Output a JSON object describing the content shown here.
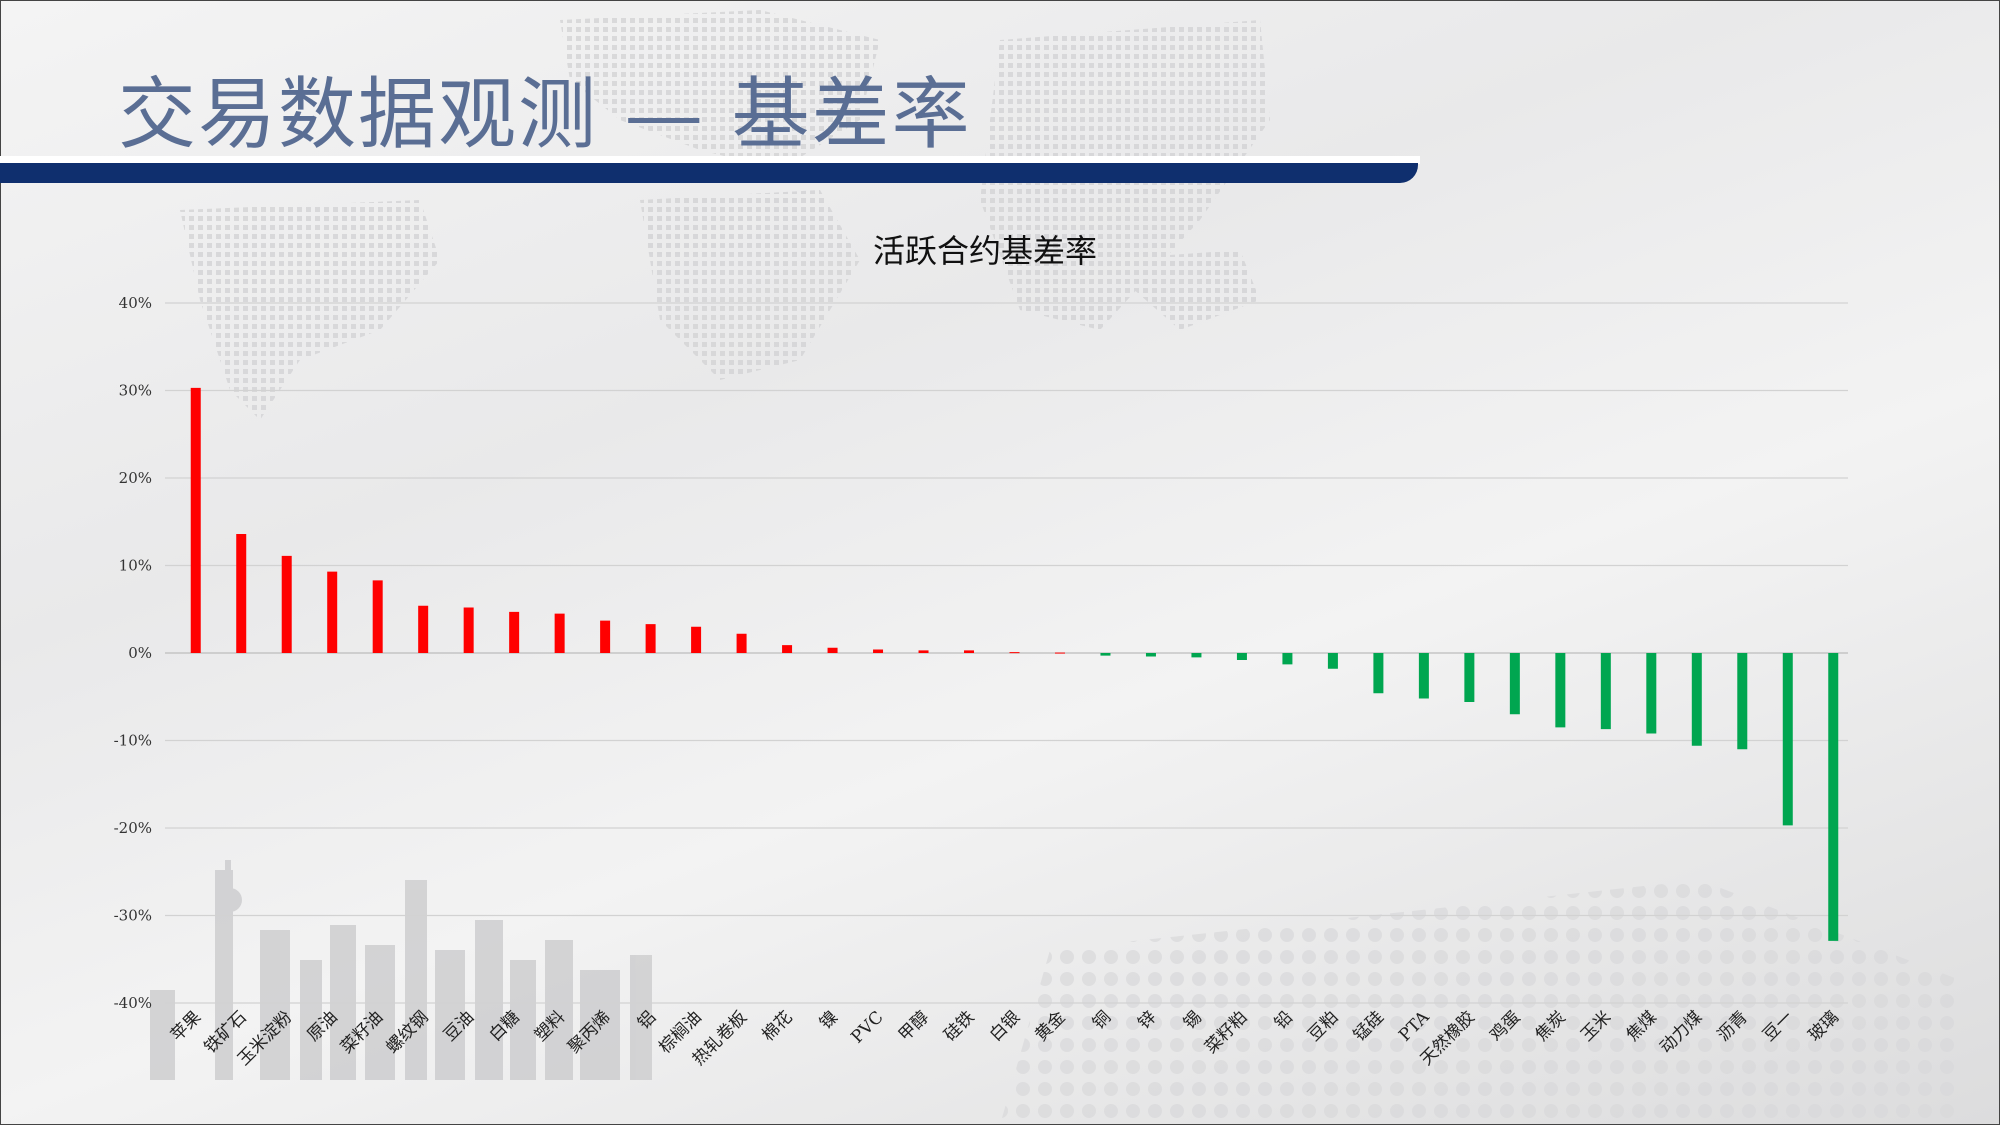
{
  "page": {
    "title": "交易数据观测 — 基差率"
  },
  "colors": {
    "positive": "#ff0000",
    "negative": "#00a650",
    "header_bar": "#0f2f6e",
    "title": "#5a6e94"
  },
  "chart_data": {
    "type": "bar",
    "title": "活跃合约基差率",
    "xlabel": "",
    "ylabel": "",
    "ylim": [
      -40,
      40
    ],
    "yticks": [
      40,
      30,
      20,
      10,
      0,
      -10,
      -20,
      -30,
      -40
    ],
    "ytick_labels": [
      "40%",
      "30%",
      "20%",
      "10%",
      "0%",
      "-10%",
      "-20%",
      "-30%",
      "-40%"
    ],
    "grid": true,
    "categories": [
      "苹果",
      "铁矿石",
      "玉米淀粉",
      "原油",
      "菜籽油",
      "螺纹钢",
      "豆油",
      "白糖",
      "塑料",
      "聚丙烯",
      "铝",
      "棕榈油",
      "热轧卷板",
      "棉花",
      "镍",
      "PVC",
      "甲醇",
      "硅铁",
      "白银",
      "黄金",
      "铜",
      "锌",
      "锡",
      "菜籽粕",
      "铅",
      "豆粕",
      "锰硅",
      "PTA",
      "天然橡胶",
      "鸡蛋",
      "焦炭",
      "玉米",
      "焦煤",
      "动力煤",
      "沥青",
      "豆一",
      "玻璃"
    ],
    "values": [
      30.3,
      13.6,
      11.1,
      9.3,
      8.3,
      5.4,
      5.2,
      4.7,
      4.5,
      3.7,
      3.3,
      3.0,
      2.2,
      0.9,
      0.6,
      0.4,
      0.3,
      0.3,
      0.1,
      0.05,
      -0.3,
      -0.4,
      -0.5,
      -0.8,
      -1.3,
      -1.8,
      -4.6,
      -5.2,
      -5.6,
      -7.0,
      -8.5,
      -8.7,
      -9.2,
      -10.6,
      -11.0,
      -19.7,
      -32.9
    ]
  }
}
